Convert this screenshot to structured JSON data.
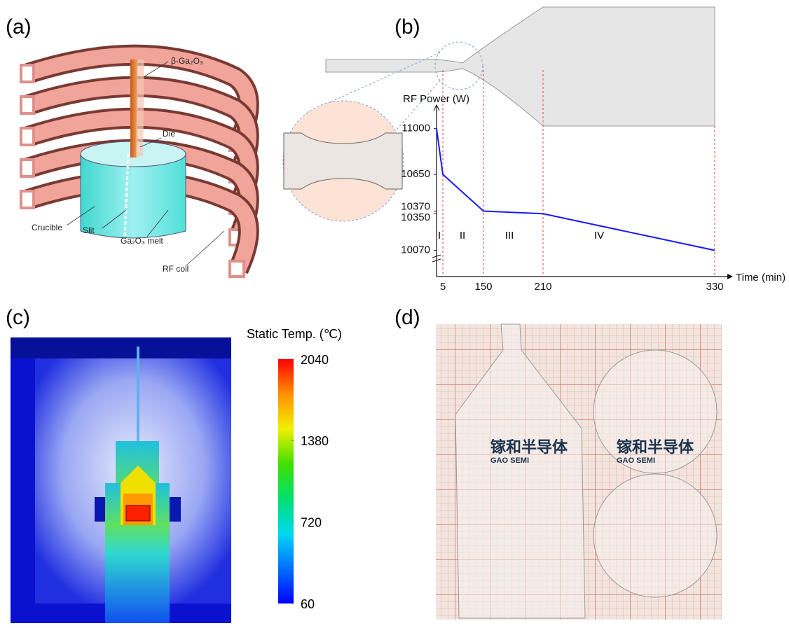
{
  "panels": {
    "a": {
      "label": "(a)",
      "annotations": [
        "β-Ga₂O₃",
        "Die",
        "Crucible",
        "Slit",
        "Ga₂O₃ melt",
        "RF coil"
      ]
    },
    "b": {
      "label": "(b)"
    },
    "c": {
      "label": "(c)"
    },
    "d": {
      "label": "(d)",
      "texts": [
        "镓和半导体",
        "GAO SEMI",
        "镓和半导体",
        "GAO SEMI"
      ]
    }
  },
  "chart_data": [
    {
      "type": "line",
      "ylabel": "RF Power (W)",
      "xlabel": "Time (min)",
      "categories": [
        null,
        "5",
        "150",
        "210",
        "330"
      ],
      "values": [
        11000,
        10650,
        10370,
        10350,
        10070
      ],
      "color": "#1a1aff",
      "ylim": [
        9870,
        11180
      ],
      "yticks": [
        11000,
        10650,
        10370,
        10350,
        10070
      ],
      "annotations": [
        "I",
        "II",
        "III",
        "IV"
      ]
    },
    {
      "type": "colorbar",
      "title": "Static Temp. (℃)",
      "ylim": [
        60,
        2040
      ],
      "yticks": [
        2040,
        1380,
        720,
        60
      ],
      "colors": [
        "#0000ff",
        "#0070ff",
        "#00d8f0",
        "#00e070",
        "#40e000",
        "#f0f000",
        "#ff9000",
        "#ff0000"
      ]
    }
  ]
}
